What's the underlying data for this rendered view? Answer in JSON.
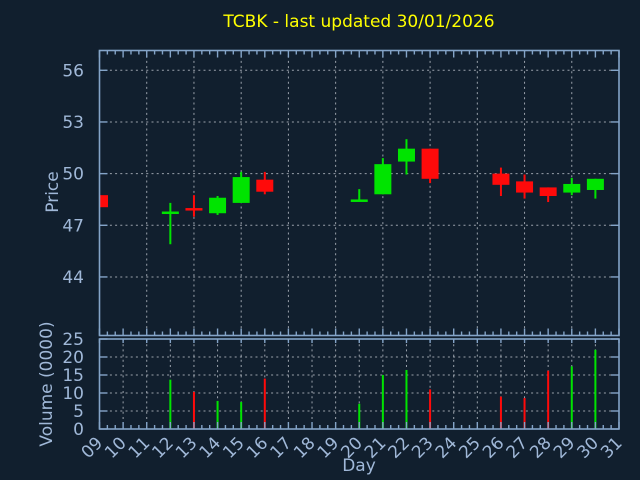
{
  "title": {
    "text": "TCBK - last updated 30/01/2026",
    "color": "#ffff00"
  },
  "colors": {
    "background": "#111f2e",
    "axis_border": "#84a4c8",
    "tick_label": "#a0b8d8",
    "grid": "#c8ced6",
    "up_candle": "#00e400",
    "down_candle": "#ff0a0a"
  },
  "chart_data": [
    {
      "type": "candlestick",
      "title": "TCBK - last updated 30/01/2026",
      "xlabel": "Day",
      "ylabel": "Price",
      "x_tick_labels": [
        "09",
        "10",
        "11",
        "12",
        "13",
        "14",
        "15",
        "16",
        "17",
        "18",
        "19",
        "20",
        "21",
        "22",
        "23",
        "24",
        "25",
        "26",
        "27",
        "28",
        "29",
        "30",
        "31"
      ],
      "x_range": [
        9,
        31
      ],
      "y_ticks": [
        44,
        47,
        50,
        53,
        56
      ],
      "ylim": [
        40.6,
        57.15
      ],
      "grid": "dashed; horizontal at y ticks, vertical at odd days",
      "legend": "none",
      "points": [
        {
          "day": 9,
          "open": 48.75,
          "high": 48.75,
          "low": 48.05,
          "close": 48.05,
          "dir": "down"
        },
        {
          "day": 12,
          "open": 47.75,
          "high": 48.3,
          "low": 45.9,
          "close": 47.8,
          "dir": "up"
        },
        {
          "day": 13,
          "open": 48.0,
          "high": 48.75,
          "low": 47.5,
          "close": 47.95,
          "dir": "down"
        },
        {
          "day": 14,
          "open": 47.7,
          "high": 48.7,
          "low": 47.6,
          "close": 48.6,
          "dir": "up"
        },
        {
          "day": 15,
          "open": 48.3,
          "high": 50.1,
          "low": 48.3,
          "close": 49.8,
          "dir": "up"
        },
        {
          "day": 16,
          "open": 49.65,
          "high": 50.1,
          "low": 48.8,
          "close": 48.95,
          "dir": "down"
        },
        {
          "day": 20,
          "open": 48.45,
          "high": 49.1,
          "low": 48.45,
          "close": 48.5,
          "dir": "up"
        },
        {
          "day": 21,
          "open": 48.8,
          "high": 50.9,
          "low": 48.8,
          "close": 50.55,
          "dir": "up"
        },
        {
          "day": 22,
          "open": 50.7,
          "high": 52.0,
          "low": 49.95,
          "close": 51.45,
          "dir": "up"
        },
        {
          "day": 23,
          "open": 51.45,
          "high": 51.45,
          "low": 49.45,
          "close": 49.7,
          "dir": "down"
        },
        {
          "day": 26,
          "open": 50.0,
          "high": 50.35,
          "low": 48.7,
          "close": 49.35,
          "dir": "down"
        },
        {
          "day": 27,
          "open": 49.55,
          "high": 49.95,
          "low": 48.55,
          "close": 48.9,
          "dir": "down"
        },
        {
          "day": 28,
          "open": 49.2,
          "high": 49.2,
          "low": 48.35,
          "close": 48.7,
          "dir": "down"
        },
        {
          "day": 29,
          "open": 48.9,
          "high": 49.75,
          "low": 48.75,
          "close": 49.4,
          "dir": "up"
        },
        {
          "day": 30,
          "open": 49.05,
          "high": 49.7,
          "low": 48.55,
          "close": 49.7,
          "dir": "up"
        }
      ]
    },
    {
      "type": "bar",
      "title": "",
      "xlabel": "Day",
      "ylabel": "Volume (0000)",
      "y_ticks": [
        0,
        5,
        10,
        15,
        20,
        25
      ],
      "ylim": [
        0,
        25
      ],
      "grid": "dashed; horizontal at y ticks, vertical at every day",
      "legend": "none",
      "points": [
        {
          "day": 12,
          "value": 13.7,
          "dir": "up"
        },
        {
          "day": 13,
          "value": 10.3,
          "dir": "down"
        },
        {
          "day": 14,
          "value": 7.8,
          "dir": "up"
        },
        {
          "day": 15,
          "value": 7.5,
          "dir": "up"
        },
        {
          "day": 16,
          "value": 14.0,
          "dir": "down"
        },
        {
          "day": 20,
          "value": 7.0,
          "dir": "up"
        },
        {
          "day": 21,
          "value": 15.0,
          "dir": "up"
        },
        {
          "day": 22,
          "value": 16.4,
          "dir": "up"
        },
        {
          "day": 23,
          "value": 11.0,
          "dir": "down"
        },
        {
          "day": 26,
          "value": 9.0,
          "dir": "down"
        },
        {
          "day": 27,
          "value": 8.6,
          "dir": "down"
        },
        {
          "day": 28,
          "value": 16.2,
          "dir": "down"
        },
        {
          "day": 29,
          "value": 17.4,
          "dir": "up"
        },
        {
          "day": 30,
          "value": 22.0,
          "dir": "up"
        }
      ]
    }
  ]
}
